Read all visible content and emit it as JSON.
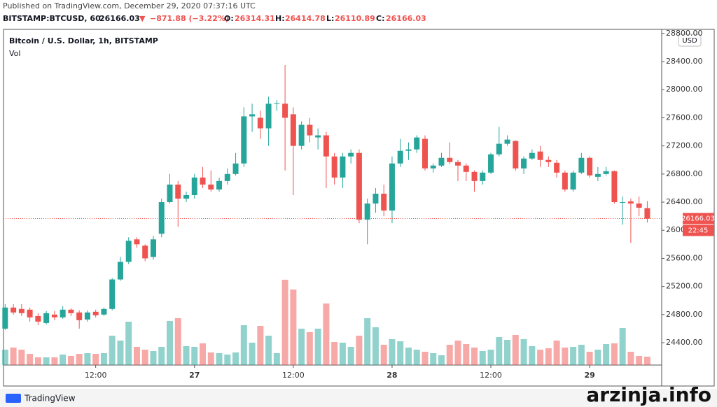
{
  "header": {
    "published": "Published on TradingView.com, December 29, 2020 07:37:16 UTC",
    "symbol": "BITSTAMP:BTCUSD, 60",
    "arrow": "▼",
    "change": "−871.88 (−3.22%)",
    "o": "O:",
    "h": "H:",
    "l": "L:",
    "c": "C:"
  },
  "chart_data": {
    "type": "candlestick",
    "title": "Bitcoin / U.S. Dollar, 1h, BITSTAMP",
    "volume_label": "Vol",
    "currency": "USD",
    "time_label": "22:45",
    "up_color": "#26a69a",
    "down_color": "#ef5350",
    "open": [
      24600,
      24900,
      24880,
      24870,
      24780,
      24680,
      24800,
      24760,
      24870,
      24830,
      24730,
      24840,
      24800,
      24880,
      25300,
      25550,
      25870,
      25780,
      25620,
      25950,
      26400,
      26650,
      26450,
      26500,
      26750,
      26650,
      26580,
      26700,
      26800,
      26950,
      27620,
      27600,
      27450,
      27800,
      27800,
      27650,
      27200,
      27500,
      27320,
      27350,
      27050,
      26750,
      27050,
      27100,
      26150,
      26380,
      26520,
      26280,
      26950,
      27130,
      27150,
      27300,
      26880,
      26920,
      27030,
      26970,
      26920,
      26830,
      26700,
      26820,
      27080,
      27230,
      27270,
      26880,
      27020,
      27120,
      27000,
      26960,
      26820,
      26580,
      26820,
      27030,
      26760,
      26800,
      26840,
      26400,
      26410,
      26380,
      26314.31
    ],
    "high": [
      24950,
      24950,
      24950,
      24900,
      24820,
      24850,
      24850,
      24920,
      24890,
      24860,
      24860,
      24870,
      24900,
      25320,
      25620,
      25900,
      25900,
      25800,
      25920,
      26450,
      26800,
      26700,
      26550,
      26800,
      26900,
      26850,
      26750,
      26880,
      27100,
      27750,
      27800,
      27700,
      27900,
      27850,
      28350,
      27750,
      27550,
      27600,
      27450,
      27400,
      27100,
      27100,
      27150,
      27150,
      26450,
      26600,
      26650,
      27050,
      27300,
      27250,
      27350,
      27350,
      26950,
      27100,
      27250,
      27000,
      26950,
      26850,
      26850,
      27100,
      27470,
      27350,
      27280,
      27050,
      27150,
      27200,
      27050,
      27000,
      26850,
      26850,
      27100,
      27050,
      26900,
      26900,
      26850,
      26480,
      26450,
      26480,
      26414.78
    ],
    "low": [
      24580,
      24800,
      24780,
      24700,
      24650,
      24660,
      24720,
      24740,
      24780,
      24600,
      24700,
      24760,
      24780,
      24860,
      25280,
      25520,
      25750,
      25560,
      25580,
      25900,
      26380,
      26050,
      26400,
      26450,
      26600,
      26550,
      26550,
      26650,
      26780,
      26900,
      27400,
      27300,
      27200,
      27700,
      26850,
      26500,
      27150,
      27250,
      27150,
      26600,
      26650,
      26600,
      26950,
      26100,
      25800,
      26250,
      26200,
      26100,
      26900,
      27000,
      27100,
      26850,
      26820,
      26900,
      26940,
      26700,
      26700,
      26550,
      26650,
      26800,
      27050,
      27200,
      26850,
      26800,
      27000,
      26900,
      26900,
      26750,
      26550,
      26550,
      26800,
      26750,
      26700,
      26780,
      26380,
      26080,
      25820,
      26200,
      26110.89
    ],
    "close": [
      24900,
      24830,
      24820,
      24760,
      24700,
      24820,
      24760,
      24870,
      24820,
      24720,
      24830,
      24790,
      24880,
      25300,
      25550,
      25850,
      25800,
      25600,
      25870,
      26400,
      26650,
      26450,
      26500,
      26750,
      26650,
      26580,
      26700,
      26800,
      26950,
      27620,
      27650,
      27450,
      27800,
      27810,
      27600,
      27200,
      27500,
      27350,
      27350,
      27050,
      26750,
      27050,
      27100,
      26150,
      26380,
      26520,
      26280,
      26950,
      27130,
      27150,
      27320,
      26880,
      26920,
      27030,
      26970,
      26920,
      26830,
      26700,
      26820,
      27080,
      27230,
      27290,
      26880,
      27020,
      27100,
      27000,
      26970,
      26820,
      26580,
      26820,
      27030,
      26780,
      26800,
      26840,
      26400,
      26400,
      26380,
      26320,
      26166.03
    ],
    "volume": [
      22,
      25,
      22,
      16,
      11,
      11,
      11,
      15,
      13,
      16,
      17,
      16,
      17,
      42,
      35,
      62,
      26,
      22,
      20,
      26,
      63,
      67,
      27,
      26,
      31,
      18,
      17,
      15,
      18,
      57,
      32,
      56,
      42,
      17,
      122,
      108,
      52,
      47,
      52,
      88,
      33,
      32,
      26,
      42,
      67,
      54,
      29,
      37,
      34,
      25,
      22,
      19,
      17,
      14,
      29,
      35,
      30,
      25,
      20,
      22,
      40,
      36,
      43,
      37,
      27,
      22,
      24,
      35,
      25,
      26,
      29,
      19,
      22,
      30,
      31,
      53,
      19,
      13,
      12
    ],
    "xlim": [
      -0.2,
      79.75
    ],
    "ylim": [
      24082,
      28858
    ],
    "vollim": [
      0,
      480
    ],
    "xticks": [
      {
        "value": 11,
        "label": "12:00"
      },
      {
        "value": 23,
        "label": "27"
      },
      {
        "value": 35,
        "label": "12:00"
      },
      {
        "value": 47,
        "label": "28"
      },
      {
        "value": 59,
        "label": "12:00"
      },
      {
        "value": 71,
        "label": "29"
      }
    ],
    "yticks": [
      {
        "value": 24400,
        "label": "24400.00"
      },
      {
        "value": 24800,
        "label": "24800.00"
      },
      {
        "value": 25200,
        "label": "25200.00"
      },
      {
        "value": 25600,
        "label": "25600.00"
      },
      {
        "value": 26000,
        "label": "26000.00"
      },
      {
        "value": 26400,
        "label": "26400.00"
      },
      {
        "value": 26800,
        "label": "26800.00"
      },
      {
        "value": 27200,
        "label": "27200.00"
      },
      {
        "value": 27600,
        "label": "27600.00"
      },
      {
        "value": 28000,
        "label": "28000.00"
      },
      {
        "value": 28400,
        "label": "28400.00"
      },
      {
        "value": 28800,
        "label": "28800.00"
      }
    ]
  },
  "footer": {
    "logo": "TradingView",
    "watermark": "arzinja.info"
  }
}
